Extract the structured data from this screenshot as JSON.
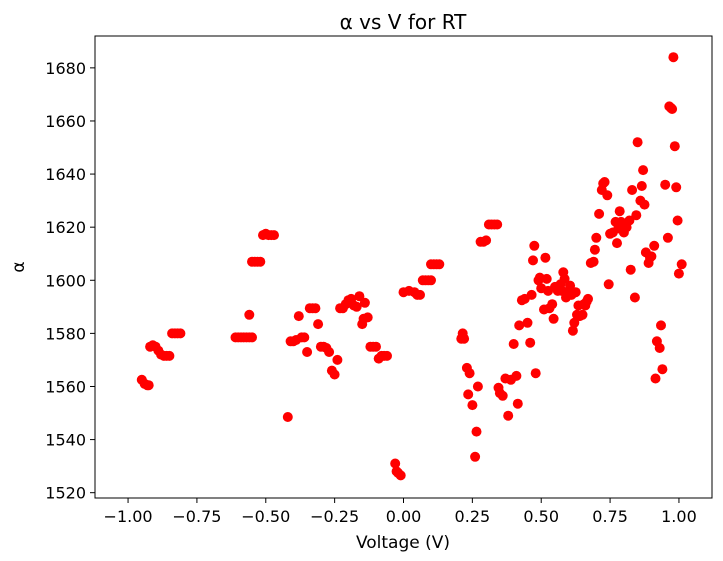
{
  "chart_data": {
    "type": "scatter",
    "title": "α vs V for RT",
    "xlabel": "Voltage (V)",
    "ylabel": "α",
    "xlim": [
      -1.12,
      1.12
    ],
    "ylim": [
      1518,
      1692
    ],
    "xticks": [
      -1.0,
      -0.75,
      -0.5,
      -0.25,
      0.0,
      0.25,
      0.5,
      0.75,
      1.0
    ],
    "xtick_labels": [
      "−1.00",
      "−0.75",
      "−0.50",
      "−0.25",
      "0.00",
      "0.25",
      "0.50",
      "0.75",
      "1.00"
    ],
    "yticks": [
      1520,
      1540,
      1560,
      1580,
      1600,
      1620,
      1640,
      1660,
      1680
    ],
    "ytick_labels": [
      "1520",
      "1540",
      "1560",
      "1580",
      "1600",
      "1620",
      "1640",
      "1660",
      "1680"
    ],
    "grid": false,
    "marker_color": "#ff0000",
    "points": [
      [
        -0.95,
        1562.5
      ],
      [
        -0.94,
        1561
      ],
      [
        -0.93,
        1560.5
      ],
      [
        -0.925,
        1560.5
      ],
      [
        -0.92,
        1575
      ],
      [
        -0.91,
        1575.5
      ],
      [
        -0.9,
        1575
      ],
      [
        -0.89,
        1573.5
      ],
      [
        -0.88,
        1572
      ],
      [
        -0.87,
        1571.5
      ],
      [
        -0.86,
        1571.5
      ],
      [
        -0.85,
        1571.5
      ],
      [
        -0.84,
        1580
      ],
      [
        -0.83,
        1580
      ],
      [
        -0.82,
        1580
      ],
      [
        -0.81,
        1580
      ],
      [
        -0.61,
        1578.5
      ],
      [
        -0.6,
        1578.5
      ],
      [
        -0.59,
        1578.5
      ],
      [
        -0.58,
        1578.5
      ],
      [
        -0.57,
        1578.5
      ],
      [
        -0.56,
        1578.5
      ],
      [
        -0.55,
        1578.5
      ],
      [
        -0.56,
        1587
      ],
      [
        -0.55,
        1607
      ],
      [
        -0.54,
        1607
      ],
      [
        -0.53,
        1607
      ],
      [
        -0.52,
        1607
      ],
      [
        -0.51,
        1617
      ],
      [
        -0.5,
        1617.5
      ],
      [
        -0.49,
        1617
      ],
      [
        -0.48,
        1617
      ],
      [
        -0.47,
        1617
      ],
      [
        -0.42,
        1548.5
      ],
      [
        -0.41,
        1577
      ],
      [
        -0.4,
        1577
      ],
      [
        -0.39,
        1577.5
      ],
      [
        -0.38,
        1586.5
      ],
      [
        -0.37,
        1578.5
      ],
      [
        -0.36,
        1578.5
      ],
      [
        -0.35,
        1573
      ],
      [
        -0.34,
        1589.5
      ],
      [
        -0.33,
        1589.5
      ],
      [
        -0.32,
        1589.5
      ],
      [
        -0.31,
        1583.5
      ],
      [
        -0.3,
        1575
      ],
      [
        -0.29,
        1575
      ],
      [
        -0.28,
        1574.5
      ],
      [
        -0.27,
        1573
      ],
      [
        -0.26,
        1566
      ],
      [
        -0.25,
        1564.5
      ],
      [
        -0.24,
        1570
      ],
      [
        -0.23,
        1589.5
      ],
      [
        -0.22,
        1589.5
      ],
      [
        -0.21,
        1591
      ],
      [
        -0.2,
        1592.5
      ],
      [
        -0.19,
        1593
      ],
      [
        -0.18,
        1590.5
      ],
      [
        -0.17,
        1590
      ],
      [
        -0.16,
        1594
      ],
      [
        -0.15,
        1583.5
      ],
      [
        -0.145,
        1585.5
      ],
      [
        -0.14,
        1591.5
      ],
      [
        -0.13,
        1586
      ],
      [
        -0.12,
        1575
      ],
      [
        -0.11,
        1575
      ],
      [
        -0.1,
        1575
      ],
      [
        -0.09,
        1570.5
      ],
      [
        -0.08,
        1571.5
      ],
      [
        -0.07,
        1571.5
      ],
      [
        -0.06,
        1571.5
      ],
      [
        -0.03,
        1531
      ],
      [
        -0.025,
        1528
      ],
      [
        -0.02,
        1527.5
      ],
      [
        -0.01,
        1526.5
      ],
      [
        0.0,
        1595.5
      ],
      [
        0.02,
        1596
      ],
      [
        0.04,
        1595.5
      ],
      [
        0.05,
        1594.5
      ],
      [
        0.06,
        1594.5
      ],
      [
        0.07,
        1600
      ],
      [
        0.08,
        1600
      ],
      [
        0.09,
        1600
      ],
      [
        0.1,
        1600
      ],
      [
        0.1,
        1606
      ],
      [
        0.11,
        1606
      ],
      [
        0.12,
        1606
      ],
      [
        0.13,
        1606
      ],
      [
        0.21,
        1578
      ],
      [
        0.215,
        1580
      ],
      [
        0.22,
        1578
      ],
      [
        0.23,
        1567
      ],
      [
        0.235,
        1557
      ],
      [
        0.24,
        1565
      ],
      [
        0.25,
        1553
      ],
      [
        0.26,
        1533.5
      ],
      [
        0.265,
        1543
      ],
      [
        0.27,
        1560
      ],
      [
        0.28,
        1614.5
      ],
      [
        0.29,
        1614.5
      ],
      [
        0.3,
        1615
      ],
      [
        0.31,
        1621
      ],
      [
        0.32,
        1621
      ],
      [
        0.33,
        1621
      ],
      [
        0.34,
        1621
      ],
      [
        0.345,
        1559.5
      ],
      [
        0.35,
        1557.5
      ],
      [
        0.36,
        1556.5
      ],
      [
        0.37,
        1563
      ],
      [
        0.38,
        1549
      ],
      [
        0.39,
        1562.5
      ],
      [
        0.4,
        1576
      ],
      [
        0.41,
        1564
      ],
      [
        0.415,
        1553.5
      ],
      [
        0.42,
        1583
      ],
      [
        0.43,
        1592.5
      ],
      [
        0.44,
        1593
      ],
      [
        0.45,
        1584
      ],
      [
        0.46,
        1576.5
      ],
      [
        0.465,
        1594.5
      ],
      [
        0.47,
        1607.5
      ],
      [
        0.475,
        1613
      ],
      [
        0.48,
        1565
      ],
      [
        0.49,
        1600
      ],
      [
        0.495,
        1601
      ],
      [
        0.5,
        1597
      ],
      [
        0.51,
        1589
      ],
      [
        0.515,
        1608.5
      ],
      [
        0.52,
        1600.5
      ],
      [
        0.525,
        1596
      ],
      [
        0.53,
        1589.5
      ],
      [
        0.54,
        1591
      ],
      [
        0.545,
        1585.5
      ],
      [
        0.55,
        1597.5
      ],
      [
        0.56,
        1596
      ],
      [
        0.57,
        1598.5
      ],
      [
        0.575,
        1596
      ],
      [
        0.58,
        1603
      ],
      [
        0.585,
        1600.5
      ],
      [
        0.59,
        1593.5
      ],
      [
        0.6,
        1596
      ],
      [
        0.605,
        1598
      ],
      [
        0.61,
        1594.5
      ],
      [
        0.615,
        1581
      ],
      [
        0.62,
        1584
      ],
      [
        0.625,
        1595.5
      ],
      [
        0.63,
        1587
      ],
      [
        0.635,
        1590.5
      ],
      [
        0.64,
        1586.5
      ],
      [
        0.65,
        1587
      ],
      [
        0.655,
        1591
      ],
      [
        0.66,
        1590.5
      ],
      [
        0.665,
        1592
      ],
      [
        0.67,
        1593
      ],
      [
        0.68,
        1606.5
      ],
      [
        0.69,
        1607
      ],
      [
        0.695,
        1611.5
      ],
      [
        0.7,
        1616
      ],
      [
        0.71,
        1625
      ],
      [
        0.72,
        1634
      ],
      [
        0.725,
        1636.5
      ],
      [
        0.73,
        1637
      ],
      [
        0.74,
        1632
      ],
      [
        0.745,
        1598.5
      ],
      [
        0.75,
        1617.5
      ],
      [
        0.76,
        1618
      ],
      [
        0.77,
        1622
      ],
      [
        0.775,
        1614
      ],
      [
        0.78,
        1619.5
      ],
      [
        0.785,
        1626
      ],
      [
        0.79,
        1622
      ],
      [
        0.8,
        1618
      ],
      [
        0.81,
        1620
      ],
      [
        0.82,
        1622.5
      ],
      [
        0.825,
        1604
      ],
      [
        0.83,
        1634
      ],
      [
        0.84,
        1593.5
      ],
      [
        0.845,
        1624.5
      ],
      [
        0.85,
        1652
      ],
      [
        0.86,
        1630
      ],
      [
        0.865,
        1635.5
      ],
      [
        0.87,
        1641.5
      ],
      [
        0.875,
        1628.5
      ],
      [
        0.88,
        1610.5
      ],
      [
        0.89,
        1606.5
      ],
      [
        0.895,
        1608.5
      ],
      [
        0.9,
        1609
      ],
      [
        0.91,
        1613
      ],
      [
        0.915,
        1563
      ],
      [
        0.92,
        1577
      ],
      [
        0.93,
        1574.5
      ],
      [
        0.935,
        1583
      ],
      [
        0.94,
        1566.5
      ],
      [
        0.95,
        1636
      ],
      [
        0.96,
        1616
      ],
      [
        0.965,
        1665.5
      ],
      [
        0.97,
        1665
      ],
      [
        0.975,
        1664.5
      ],
      [
        0.98,
        1684
      ],
      [
        0.985,
        1650.5
      ],
      [
        0.99,
        1635
      ],
      [
        0.995,
        1622.5
      ],
      [
        1.0,
        1602.5
      ],
      [
        1.01,
        1606
      ]
    ]
  }
}
